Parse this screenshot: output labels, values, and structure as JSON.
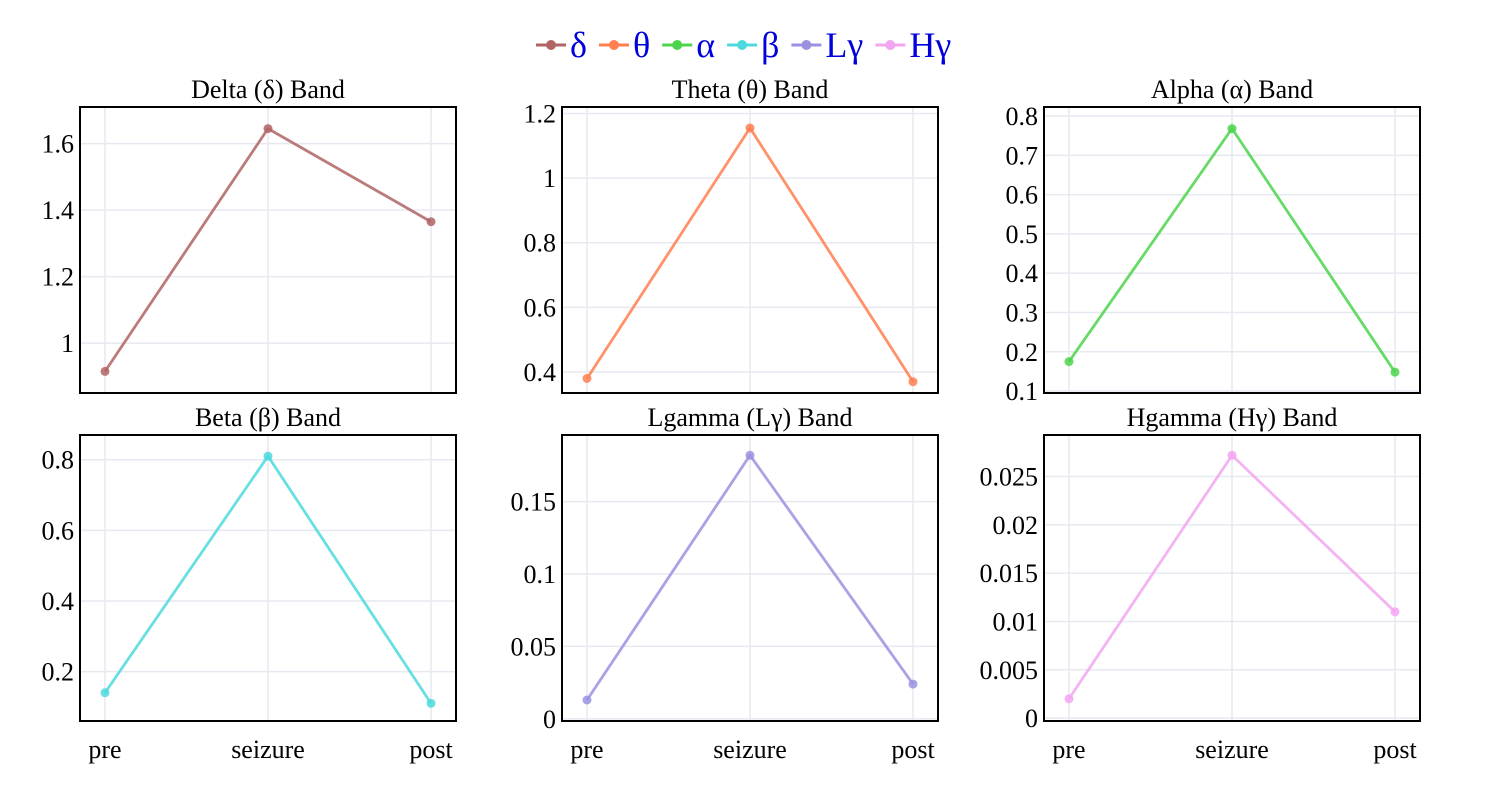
{
  "chart_data": {
    "type": "line",
    "categories": [
      "pre",
      "seizure",
      "post"
    ],
    "legend": {
      "placement": "top-center",
      "text_color": "#0000dd",
      "entries": [
        {
          "label": "δ",
          "color": "#b06464"
        },
        {
          "label": "θ",
          "color": "#ff7f50"
        },
        {
          "label": "α",
          "color": "#4cd44c"
        },
        {
          "label": "β",
          "color": "#4dd9dd"
        },
        {
          "label": "Lγ",
          "color": "#9a92e0"
        },
        {
          "label": "Hγ",
          "color": "#f2a6f0"
        }
      ]
    },
    "grid": true,
    "panels": [
      {
        "title": "Delta (δ) Band",
        "color": "#b06464",
        "values": [
          0.915,
          1.645,
          1.365
        ],
        "ylim": [
          0.85,
          1.71
        ],
        "yticks": [
          1,
          1.2,
          1.4,
          1.6
        ],
        "ytick_labels": [
          "1",
          "1.2",
          "1.4",
          "1.6"
        ]
      },
      {
        "title": "Theta (θ) Band",
        "color": "#ff7f50",
        "values": [
          0.38,
          1.155,
          0.37
        ],
        "ylim": [
          0.335,
          1.22
        ],
        "yticks": [
          0.4,
          0.6,
          0.8,
          1,
          1.2
        ],
        "ytick_labels": [
          "0.4",
          "0.6",
          "0.8",
          "1",
          "1.2"
        ]
      },
      {
        "title": "Alpha (α) Band",
        "color": "#4cd44c",
        "values": [
          0.175,
          0.768,
          0.148
        ],
        "ylim": [
          0.095,
          0.823
        ],
        "yticks": [
          0.1,
          0.2,
          0.3,
          0.4,
          0.5,
          0.6,
          0.7,
          0.8
        ],
        "ytick_labels": [
          "0.1",
          "0.2",
          "0.3",
          "0.4",
          "0.5",
          "0.6",
          "0.7",
          "0.8"
        ]
      },
      {
        "title": "Beta (β) Band",
        "color": "#4dd9dd",
        "values": [
          0.14,
          0.81,
          0.11
        ],
        "ylim": [
          0.06,
          0.87
        ],
        "yticks": [
          0.2,
          0.4,
          0.6,
          0.8
        ],
        "ytick_labels": [
          "0.2",
          "0.4",
          "0.6",
          "0.8"
        ]
      },
      {
        "title": "Lgamma (Lγ) Band",
        "color": "#9a92e0",
        "values": [
          0.013,
          0.182,
          0.024
        ],
        "ylim": [
          -0.0015,
          0.196
        ],
        "yticks": [
          0,
          0.05,
          0.1,
          0.15
        ],
        "ytick_labels": [
          "0",
          "0.05",
          "0.1",
          "0.15"
        ]
      },
      {
        "title": "Hgamma (Hγ) Band",
        "color": "#f2a6f0",
        "values": [
          0.002,
          0.0272,
          0.011
        ],
        "ylim": [
          -0.0003,
          0.0293
        ],
        "yticks": [
          0,
          0.005,
          0.01,
          0.015,
          0.02,
          0.025
        ],
        "ytick_labels": [
          "0",
          "0.005",
          "0.01",
          "0.015",
          "0.02",
          "0.025"
        ]
      }
    ]
  }
}
